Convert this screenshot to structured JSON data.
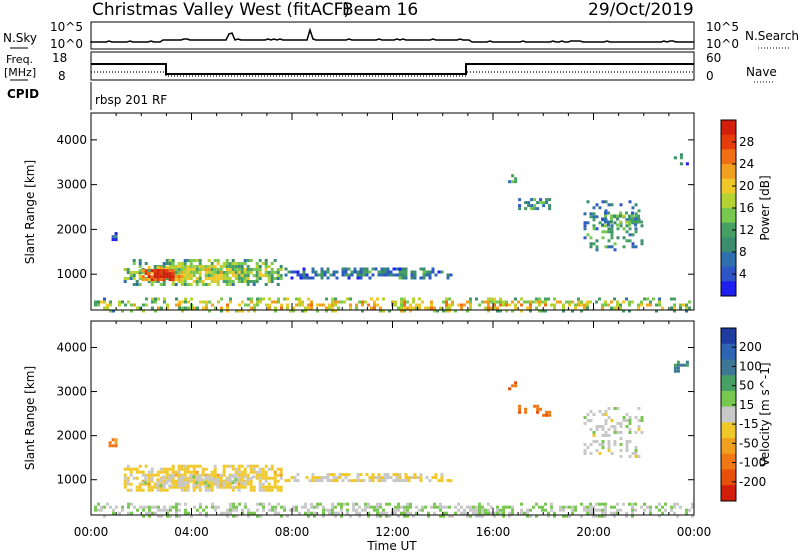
{
  "header": {
    "station": "Christmas Valley West (fitACF)",
    "beam": "Beam 16",
    "date": "29/Oct/2019"
  },
  "top_panels": {
    "nsky_label": "N.Sky",
    "nsky_ticks": [
      "10^5",
      "10^0"
    ],
    "nsearch_label": "N.Search",
    "freq_label": [
      "Freq.",
      "[MHz]"
    ],
    "freq_ticks": [
      "18",
      "8"
    ],
    "nave_label": "Nave",
    "nave_ticks": [
      "60",
      "0"
    ],
    "cpid_label": "CPID",
    "cpid_value": "rbsp 201 RF"
  },
  "chart_data": [
    {
      "type": "heatmap",
      "name": "power",
      "ylabel": "Slant Range [km]",
      "yticks": [
        1000,
        2000,
        3000,
        4000
      ],
      "ylim": [
        200,
        4600
      ],
      "colorbar_label": "Power [dB]",
      "colorbar_ticks": [
        "28",
        "24",
        "20",
        "16",
        "12",
        "8",
        "4"
      ],
      "colors": [
        "#1e1ef0",
        "#2d55c8",
        "#2f6fae",
        "#3c8c6e",
        "#46a064",
        "#78c850",
        "#b4d232",
        "#f0c828",
        "#f0a01e",
        "#f06e14",
        "#e63c0a",
        "#d21e0a"
      ],
      "regions": [
        {
          "t0": 1.3,
          "t1": 7.6,
          "r0": 760,
          "r1": 1340,
          "intensity": 0.45,
          "density": 0.9
        },
        {
          "t0": 1.9,
          "t1": 3.6,
          "r0": 860,
          "r1": 1180,
          "intensity": 0.85,
          "density": 0.95
        },
        {
          "t0": 7.7,
          "t1": 14.3,
          "r0": 920,
          "r1": 1150,
          "intensity": 0.25,
          "density": 0.8
        },
        {
          "t0": 0.7,
          "t1": 1.0,
          "r0": 1780,
          "r1": 1940,
          "intensity": 0.2,
          "density": 0.8
        },
        {
          "t0": 16.6,
          "t1": 16.9,
          "r0": 3050,
          "r1": 3300,
          "intensity": 0.3,
          "density": 0.5
        },
        {
          "t0": 17.0,
          "t1": 18.3,
          "r0": 2450,
          "r1": 2700,
          "intensity": 0.3,
          "density": 0.5
        },
        {
          "t0": 19.6,
          "t1": 21.9,
          "r0": 1550,
          "r1": 2650,
          "intensity": 0.3,
          "density": 0.35
        },
        {
          "t0": 20.3,
          "t1": 21.9,
          "r0": 2100,
          "r1": 2400,
          "intensity": 0.35,
          "density": 0.6
        },
        {
          "t0": 23.2,
          "t1": 23.7,
          "r0": 3450,
          "r1": 3700,
          "intensity": 0.3,
          "density": 0.5
        },
        {
          "t0": 0.0,
          "t1": 24.0,
          "r0": 200,
          "r1": 480,
          "intensity": 0.55,
          "density": 0.55
        }
      ]
    },
    {
      "type": "heatmap",
      "name": "velocity",
      "ylabel": "Slant Range [km]",
      "yticks": [
        1000,
        2000,
        3000,
        4000
      ],
      "ylim": [
        200,
        4600
      ],
      "colorbar_label": "Velocity [m s^-1]",
      "colorbar_ticks": [
        "200",
        "100",
        "50",
        "15",
        "-15",
        "-50",
        "-100",
        "-200"
      ],
      "colors": [
        "#1e3ca0",
        "#2d64b4",
        "#3c7896",
        "#46a064",
        "#78c850",
        "#c8c8c8",
        "#f0c828",
        "#f0a01e",
        "#f07814",
        "#e6500a",
        "#d21e0a"
      ],
      "regions": [
        {
          "t0": 1.3,
          "t1": 7.6,
          "r0": 760,
          "r1": 1340,
          "vel": -40,
          "density": 0.9
        },
        {
          "t0": 2.0,
          "t1": 6.5,
          "r0": 830,
          "r1": 1100,
          "vel": 0,
          "density": 0.6
        },
        {
          "t0": 7.7,
          "t1": 14.3,
          "r0": 950,
          "r1": 1150,
          "vel": -20,
          "density": 0.8
        },
        {
          "t0": 0.7,
          "t1": 1.0,
          "r0": 1780,
          "r1": 1940,
          "vel": -120,
          "density": 0.8
        },
        {
          "t0": 16.6,
          "t1": 16.9,
          "r0": 3050,
          "r1": 3300,
          "vel": -150,
          "density": 0.5
        },
        {
          "t0": 17.0,
          "t1": 18.3,
          "r0": 2450,
          "r1": 2700,
          "vel": -150,
          "density": 0.5
        },
        {
          "t0": 19.6,
          "t1": 21.9,
          "r0": 1550,
          "r1": 2650,
          "vel": 0,
          "density": 0.35
        },
        {
          "t0": 23.2,
          "t1": 23.7,
          "r0": 3450,
          "r1": 3700,
          "vel": 120,
          "density": 0.5
        },
        {
          "t0": 0.0,
          "t1": 24.0,
          "r0": 200,
          "r1": 480,
          "vel": 20,
          "density": 0.55
        }
      ]
    }
  ],
  "x_axis": {
    "label": "Time UT",
    "ticks": [
      "00:00",
      "04:00",
      "08:00",
      "12:00",
      "16:00",
      "20:00",
      "00:00"
    ],
    "range_hours": [
      0,
      24
    ]
  }
}
